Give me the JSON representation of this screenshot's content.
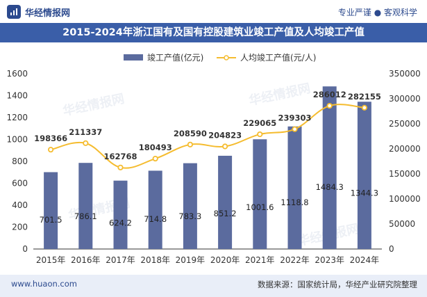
{
  "header": {
    "brand": "华经情报网",
    "tagline": "专业严谨 ● 客观科学"
  },
  "chart_data": {
    "type": "bar",
    "title": "2015-2024年浙江国有及国有控股建筑业竣工产值及人均竣工产值",
    "categories": [
      "2015年",
      "2016年",
      "2017年",
      "2018年",
      "2019年",
      "2020年",
      "2021年",
      "2022年",
      "2023年",
      "2024年"
    ],
    "series": [
      {
        "name": "竣工产值(亿元)",
        "type": "bar",
        "axis": "left",
        "values": [
          701.5,
          786.1,
          624.2,
          714.8,
          783.3,
          851.2,
          1001.6,
          1118.8,
          1484.3,
          1344.3
        ],
        "labels": [
          "701.5",
          "786.1",
          "624.2",
          "714.8",
          "783.3",
          "851.2",
          "1001.6",
          "1118.8",
          "1484.3",
          "1344.3"
        ],
        "color": "#5b6b9e"
      },
      {
        "name": "人均竣工产值(元/人)",
        "type": "line",
        "axis": "right",
        "values": [
          198366,
          211337,
          162768,
          180493,
          208590,
          204823,
          229065,
          239303,
          286012,
          282155
        ],
        "labels": [
          "198366",
          "211337",
          "162768",
          "180493",
          "208590",
          "204823",
          "229065",
          "239303",
          "286012",
          "282155"
        ],
        "color": "#f5bc2f"
      }
    ],
    "y_left": {
      "range": [
        0,
        1600
      ],
      "ticks": [
        0,
        200,
        400,
        600,
        800,
        1000,
        1200,
        1400,
        1600
      ],
      "tick_labels": [
        "0",
        "200",
        "400",
        "600",
        "800",
        "1000",
        "1200",
        "1400",
        "1600"
      ]
    },
    "y_right": {
      "range": [
        0,
        350000
      ],
      "ticks": [
        0,
        50000,
        100000,
        150000,
        200000,
        250000,
        300000,
        350000
      ],
      "tick_labels": [
        "0",
        "50000",
        "100000",
        "150000",
        "200000",
        "250000",
        "300000",
        "350000"
      ]
    },
    "legend_position": "top-center",
    "grid": false
  },
  "footer": {
    "website": "www.huaon.com",
    "source": "数据来源：国家统计局，华经产业研究院整理"
  }
}
